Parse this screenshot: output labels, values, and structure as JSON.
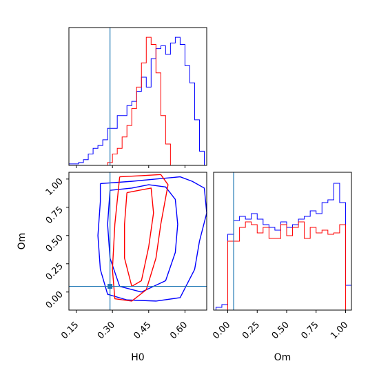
{
  "chart_data": [
    {
      "panel": "H0 marginal histogram",
      "type": "histogram",
      "xlim": [
        0.12,
        0.69
      ],
      "truth": 0.29,
      "series": [
        {
          "color": "#0000ff",
          "bin_edges": [
            0.12,
            0.14,
            0.16,
            0.18,
            0.2,
            0.22,
            0.24,
            0.26,
            0.28,
            0.3,
            0.32,
            0.34,
            0.36,
            0.38,
            0.4,
            0.42,
            0.44,
            0.46,
            0.48,
            0.5,
            0.52,
            0.54,
            0.56,
            0.58,
            0.6,
            0.62,
            0.64,
            0.66,
            0.68
          ],
          "values": [
            0.01,
            0.01,
            0.02,
            0.04,
            0.08,
            0.12,
            0.14,
            0.18,
            0.26,
            0.26,
            0.35,
            0.35,
            0.42,
            0.45,
            0.52,
            0.62,
            0.55,
            0.75,
            0.82,
            0.84,
            0.78,
            0.86,
            0.9,
            0.85,
            0.7,
            0.58,
            0.32,
            0.1
          ]
        },
        {
          "color": "#ff0000",
          "bin_edges": [
            0.28,
            0.3,
            0.32,
            0.34,
            0.36,
            0.38,
            0.4,
            0.42,
            0.44,
            0.46,
            0.48,
            0.5,
            0.52,
            0.54
          ],
          "values": [
            0.02,
            0.08,
            0.12,
            0.2,
            0.28,
            0.4,
            0.55,
            0.72,
            0.9,
            0.85,
            0.65,
            0.35,
            0.15
          ]
        }
      ]
    },
    {
      "panel": "H0 vs Om joint contours",
      "type": "contour",
      "xlabel": "H0",
      "ylabel": "Om",
      "xlim": [
        0.12,
        0.69
      ],
      "ylim": [
        -0.16,
        1.06
      ],
      "xticks": [
        "0.15",
        "0.30",
        "0.45",
        "0.60"
      ],
      "yticks": [
        "0.00",
        "0.25",
        "0.50",
        "0.75",
        "1.00"
      ],
      "truth": [
        0.29,
        0.05
      ],
      "series": [
        {
          "color": "#0000ff",
          "contours": [
            [
              [
                0.25,
                0.96
              ],
              [
                0.38,
                0.98
              ],
              [
                0.48,
                1.0
              ],
              [
                0.58,
                1.02
              ],
              [
                0.63,
                0.98
              ],
              [
                0.68,
                0.92
              ],
              [
                0.69,
                0.7
              ],
              [
                0.66,
                0.45
              ],
              [
                0.64,
                0.2
              ],
              [
                0.58,
                -0.05
              ],
              [
                0.48,
                -0.08
              ],
              [
                0.36,
                -0.07
              ],
              [
                0.28,
                -0.02
              ],
              [
                0.25,
                0.2
              ],
              [
                0.24,
                0.5
              ],
              [
                0.25,
                0.8
              ],
              [
                0.25,
                0.96
              ]
            ],
            [
              [
                0.29,
                0.9
              ],
              [
                0.38,
                0.92
              ],
              [
                0.45,
                0.95
              ],
              [
                0.52,
                0.93
              ],
              [
                0.56,
                0.82
              ],
              [
                0.57,
                0.6
              ],
              [
                0.56,
                0.35
              ],
              [
                0.52,
                0.1
              ],
              [
                0.42,
                0.0
              ],
              [
                0.33,
                0.05
              ],
              [
                0.29,
                0.3
              ],
              [
                0.28,
                0.6
              ],
              [
                0.29,
                0.9
              ]
            ]
          ]
        },
        {
          "color": "#ff0000",
          "contours": [
            [
              [
                0.33,
                1.02
              ],
              [
                0.42,
                1.03
              ],
              [
                0.5,
                1.04
              ],
              [
                0.53,
                0.95
              ],
              [
                0.5,
                0.6
              ],
              [
                0.48,
                0.3
              ],
              [
                0.44,
                0.02
              ],
              [
                0.38,
                -0.08
              ],
              [
                0.31,
                -0.06
              ],
              [
                0.3,
                0.2
              ],
              [
                0.31,
                0.6
              ],
              [
                0.33,
                1.02
              ]
            ],
            [
              [
                0.36,
                0.88
              ],
              [
                0.41,
                0.9
              ],
              [
                0.46,
                0.92
              ],
              [
                0.47,
                0.7
              ],
              [
                0.45,
                0.4
              ],
              [
                0.42,
                0.1
              ],
              [
                0.38,
                0.05
              ],
              [
                0.35,
                0.3
              ],
              [
                0.35,
                0.6
              ],
              [
                0.36,
                0.88
              ]
            ]
          ]
        }
      ]
    },
    {
      "panel": "Om marginal histogram",
      "type": "histogram",
      "xlabel": "Om",
      "xlim": [
        -0.12,
        1.05
      ],
      "xticks": [
        "0.00",
        "0.25",
        "0.50",
        "0.75",
        "1.00"
      ],
      "truth": 0.05,
      "series": [
        {
          "color": "#0000ff",
          "bin_edges": [
            -0.1,
            -0.05,
            0.0,
            0.05,
            0.1,
            0.15,
            0.2,
            0.25,
            0.3,
            0.35,
            0.4,
            0.45,
            0.5,
            0.55,
            0.6,
            0.65,
            0.7,
            0.75,
            0.8,
            0.85,
            0.9,
            0.95,
            1.0,
            1.05
          ],
          "values": [
            0.02,
            0.04,
            0.55,
            0.65,
            0.68,
            0.66,
            0.7,
            0.66,
            0.62,
            0.6,
            0.58,
            0.64,
            0.6,
            0.62,
            0.66,
            0.68,
            0.72,
            0.7,
            0.78,
            0.8,
            0.92,
            0.78,
            0.18
          ]
        },
        {
          "color": "#ff0000",
          "bin_edges": [
            0.0,
            0.05,
            0.1,
            0.15,
            0.2,
            0.25,
            0.3,
            0.35,
            0.4,
            0.45,
            0.5,
            0.55,
            0.6,
            0.65,
            0.7,
            0.75,
            0.8,
            0.85,
            0.9,
            0.95,
            1.0
          ],
          "values": [
            0.5,
            0.5,
            0.6,
            0.64,
            0.62,
            0.56,
            0.6,
            0.52,
            0.52,
            0.62,
            0.54,
            0.6,
            0.64,
            0.52,
            0.6,
            0.56,
            0.58,
            0.55,
            0.56,
            0.62
          ]
        }
      ]
    }
  ]
}
